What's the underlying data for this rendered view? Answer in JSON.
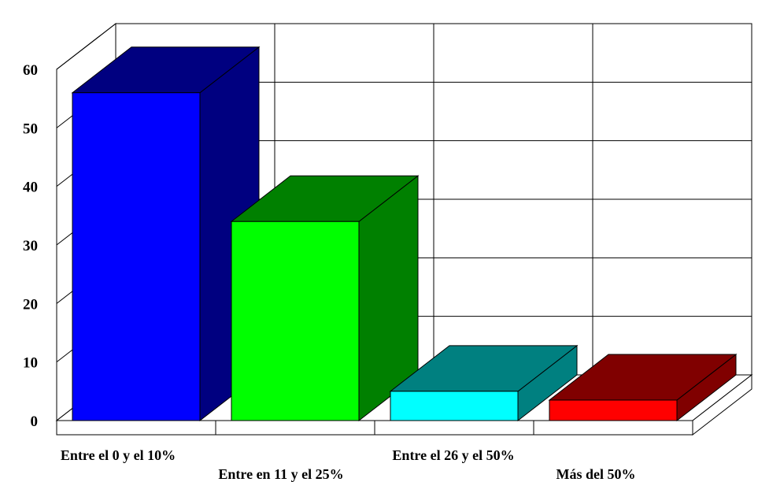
{
  "chart_data": {
    "type": "bar",
    "three_d": true,
    "title": "",
    "xlabel": "",
    "ylabel": "",
    "ylim": [
      0,
      60
    ],
    "yticks": [
      0,
      10,
      20,
      30,
      40,
      50,
      60
    ],
    "grid": true,
    "legend": "none",
    "categories": [
      "Entre el 0 y el 10%",
      "Entre en 11 y el 25%",
      "Entre el 26 y el 50%",
      "Más del 50%"
    ],
    "values": [
      56,
      34,
      5,
      3.5
    ],
    "colors": [
      {
        "front": "#0000ff",
        "side": "#000080",
        "top": "#000080"
      },
      {
        "front": "#00ff00",
        "side": "#008000",
        "top": "#008000"
      },
      {
        "front": "#00ffff",
        "side": "#008080",
        "top": "#008080"
      },
      {
        "front": "#ff0000",
        "side": "#800000",
        "top": "#800000"
      }
    ]
  }
}
